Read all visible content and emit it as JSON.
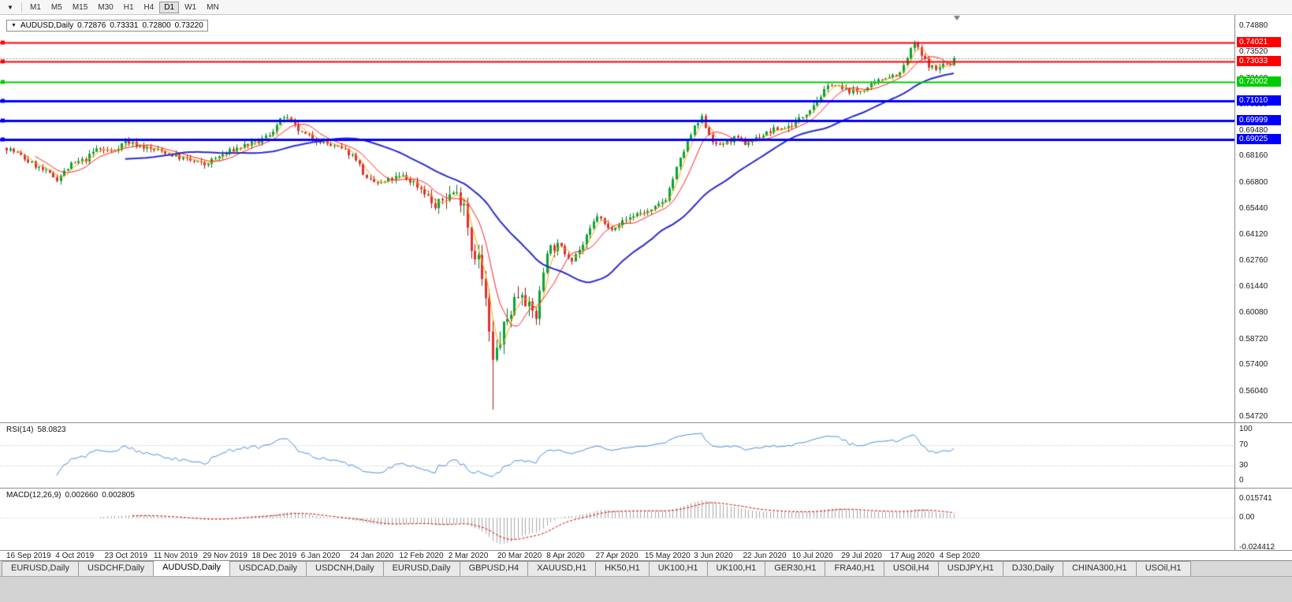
{
  "toolbar": {
    "timeframes": [
      "M1",
      "M5",
      "M15",
      "M30",
      "H1",
      "H4",
      "D1",
      "W1",
      "MN"
    ],
    "active_timeframe": "D1"
  },
  "chart": {
    "header": {
      "symbol": "AUDUSD,Daily",
      "open": "0.72876",
      "high": "0.73331",
      "low": "0.72800",
      "close": "0.73220"
    },
    "current_price": "0.73220",
    "price_axis_labels": [
      "0.74880",
      "0.73520",
      "0.72160",
      "0.70800",
      "0.69480",
      "0.68160",
      "0.66800",
      "0.65440",
      "0.64120",
      "0.62760",
      "0.61440",
      "0.60080",
      "0.58720",
      "0.57400",
      "0.56040",
      "0.54720"
    ],
    "hlines": [
      {
        "price": "0.74021",
        "value": 0.74021,
        "color": "#ff0000",
        "width": 2
      },
      {
        "price": "0.73033",
        "value": 0.73033,
        "color": "#ff0000",
        "width": 2
      },
      {
        "price": "0.72002",
        "value": 0.72002,
        "color": "#00cc00",
        "width": 2
      },
      {
        "price": "0.71010",
        "value": 0.7101,
        "color": "#0000ff",
        "width": 3
      },
      {
        "price": "0.69999",
        "value": 0.69999,
        "color": "#0000ff",
        "width": 3
      },
      {
        "price": "0.69025",
        "value": 0.69025,
        "color": "#0000ff",
        "width": 3
      }
    ]
  },
  "rsi": {
    "name": "RSI(14)",
    "value": "58.0823",
    "color": "#4a90d9",
    "axis_labels": [
      "100",
      "70",
      "30",
      "0"
    ],
    "levels": [
      70,
      30
    ]
  },
  "macd": {
    "name": "MACD(12,26,9)",
    "value_main": "0.002660",
    "value_signal": "0.002805",
    "histogram_color": "#a8a8a8",
    "signal_color": "#d40000",
    "axis_labels": [
      "0.015741",
      "0.00",
      "-0.024412"
    ]
  },
  "date_axis": [
    "16 Sep 2019",
    "4 Oct 2019",
    "23 Oct 2019",
    "11 Nov 2019",
    "29 Nov 2019",
    "18 Dec 2019",
    "6 Jan 2020",
    "24 Jan 2020",
    "12 Feb 2020",
    "2 Mar 2020",
    "20 Mar 2020",
    "8 Apr 2020",
    "27 Apr 2020",
    "15 May 2020",
    "3 Jun 2020",
    "22 Jun 2020",
    "10 Jul 2020",
    "29 Jul 2020",
    "17 Aug 2020",
    "4 Sep 2020"
  ],
  "tabs": {
    "items": [
      "EURUSD,Daily",
      "USDCHF,Daily",
      "AUDUSD,Daily",
      "USDCAD,Daily",
      "USDCNH,Daily",
      "EURUSD,Daily",
      "GBPUSD,H4",
      "XAUUSD,H1",
      "HK50,H1",
      "UK100,H1",
      "UK100,H1",
      "GER30,H1",
      "FRA40,H1",
      "USOil,H4",
      "USDJPY,H1",
      "DJ30,Daily",
      "CHINA300,H1",
      "USOil,H1"
    ],
    "active_index": 2
  },
  "chart_data": {
    "type": "candlestick",
    "symbol": "AUDUSD",
    "timeframe": "Daily",
    "quote": {
      "open": 0.72876,
      "high": 0.73331,
      "low": 0.728,
      "close": 0.7322
    },
    "count": 264,
    "price_anchors": [
      [
        0,
        0.686
      ],
      [
        3,
        0.683
      ],
      [
        6,
        0.679
      ],
      [
        10,
        0.6745
      ],
      [
        14,
        0.67
      ],
      [
        18,
        0.6772
      ],
      [
        22,
        0.68
      ],
      [
        25,
        0.6855
      ],
      [
        29,
        0.684
      ],
      [
        33,
        0.6893
      ],
      [
        37,
        0.687
      ],
      [
        40,
        0.6852
      ],
      [
        44,
        0.6838
      ],
      [
        48,
        0.681
      ],
      [
        52,
        0.6788
      ],
      [
        55,
        0.6772
      ],
      [
        58,
        0.6805
      ],
      [
        62,
        0.6842
      ],
      [
        66,
        0.6873
      ],
      [
        70,
        0.689
      ],
      [
        73,
        0.693
      ],
      [
        77,
        0.7022
      ],
      [
        79,
        0.6988
      ],
      [
        82,
        0.6932
      ],
      [
        86,
        0.6905
      ],
      [
        90,
        0.6872
      ],
      [
        94,
        0.6845
      ],
      [
        97,
        0.6808
      ],
      [
        100,
        0.6692
      ],
      [
        104,
        0.6672
      ],
      [
        107,
        0.67
      ],
      [
        110,
        0.6712
      ],
      [
        113,
        0.668
      ],
      [
        116,
        0.6635
      ],
      [
        119,
        0.6548
      ],
      [
        121,
        0.6592
      ],
      [
        124,
        0.663
      ],
      [
        127,
        0.6585
      ],
      [
        129,
        0.6345
      ],
      [
        131,
        0.6292
      ],
      [
        133,
        0.606
      ],
      [
        135,
        0.5745
      ],
      [
        136,
        0.5812
      ],
      [
        138,
        0.5925
      ],
      [
        141,
        0.6078
      ],
      [
        143,
        0.6128
      ],
      [
        145,
        0.6032
      ],
      [
        147,
        0.5992
      ],
      [
        150,
        0.6338
      ],
      [
        153,
        0.6352
      ],
      [
        157,
        0.6292
      ],
      [
        160,
        0.6358
      ],
      [
        164,
        0.6512
      ],
      [
        167,
        0.6442
      ],
      [
        171,
        0.6478
      ],
      [
        175,
        0.6522
      ],
      [
        179,
        0.6532
      ],
      [
        183,
        0.6598
      ],
      [
        186,
        0.6752
      ],
      [
        189,
        0.6892
      ],
      [
        191,
        0.6962
      ],
      [
        193,
        0.7012
      ],
      [
        195,
        0.6932
      ],
      [
        197,
        0.6868
      ],
      [
        200,
        0.6892
      ],
      [
        202,
        0.6908
      ],
      [
        205,
        0.6882
      ],
      [
        209,
        0.6918
      ],
      [
        213,
        0.6952
      ],
      [
        217,
        0.6968
      ],
      [
        221,
        0.7022
      ],
      [
        225,
        0.7108
      ],
      [
        229,
        0.7192
      ],
      [
        232,
        0.7162
      ],
      [
        236,
        0.7148
      ],
      [
        240,
        0.7178
      ],
      [
        244,
        0.7228
      ],
      [
        248,
        0.7242
      ],
      [
        251,
        0.7362
      ],
      [
        252,
        0.7404
      ],
      [
        254,
        0.7332
      ],
      [
        256,
        0.7288
      ],
      [
        258,
        0.7262
      ],
      [
        260,
        0.7292
      ],
      [
        262,
        0.7286
      ],
      [
        263,
        0.7322
      ]
    ],
    "spike_low": {
      "day": 135,
      "low": 0.551
    },
    "spike_high": {
      "day": 252,
      "high": 0.7414
    },
    "noise": {
      "seed": 7,
      "close_amp": 0.0014,
      "wick_amp": 0.002,
      "vol_center": 135,
      "vol_width": 11,
      "vol_boost": 2.4
    },
    "colors": {
      "up": "#00a832",
      "up_border": "#067a24",
      "down": "#e03131",
      "down_border": "#a81414",
      "current_price_line": "#9a9a9a"
    },
    "moving_averages": [
      {
        "period": 4,
        "color": "#ffa500",
        "width": 1
      },
      {
        "period": 9,
        "color": "#ff2020",
        "width": 1
      },
      {
        "period": 34,
        "color": "#2b2bd0",
        "width": 2
      }
    ],
    "rsi_period": 14,
    "macd_params": {
      "fast": 12,
      "slow": 26,
      "signal": 9
    },
    "macd_range": [
      -0.024412,
      0.015741
    ],
    "y_axis_range": [
      0.5456,
      0.75246
    ]
  }
}
